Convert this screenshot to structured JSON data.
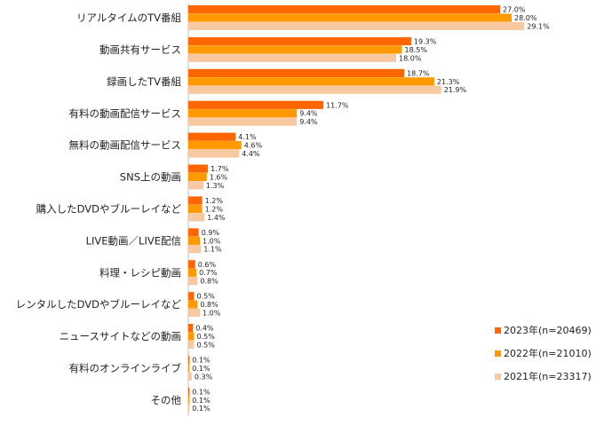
{
  "chart_data": {
    "type": "bar",
    "orientation": "horizontal",
    "unit": "%",
    "categories": [
      "リアルタイムのTV番組",
      "動画共有サービス",
      "録画したTV番組",
      "有料の動画配信サービス",
      "無料の動画配信サービス",
      "SNS上の動画",
      "購入したDVDやブルーレイなど",
      "LIVE動画／LIVE配信",
      "料理・レシピ動画",
      "レンタルしたDVDやブルーレイなど",
      "ニュースサイトなどの動画",
      "有料のオンラインライブ",
      "その他"
    ],
    "series": [
      {
        "name": "2023年(n=20469)",
        "color": "#FF6600",
        "values": [
          27.0,
          19.3,
          18.7,
          11.7,
          4.1,
          1.7,
          1.2,
          0.9,
          0.6,
          0.5,
          0.4,
          0.1,
          0.1
        ],
        "labels": [
          "27.0%",
          "19.3%",
          "18.7%",
          "11.7%",
          "4.1%",
          "1.7%",
          "1.2%",
          "0.9%",
          "0.6%",
          "0.5%",
          "0.4%",
          "0.1%",
          "0.1%"
        ]
      },
      {
        "name": "2022年(n=21010)",
        "color": "#FF9900",
        "values": [
          28.0,
          18.5,
          21.3,
          9.4,
          4.6,
          1.6,
          1.2,
          1.0,
          0.7,
          0.8,
          0.5,
          0.1,
          0.1
        ],
        "labels": [
          "28.0%",
          "18.5%",
          "21.3%",
          "9.4%",
          "4.6%",
          "1.6%",
          "1.2%",
          "1.0%",
          "0.7%",
          "0.8%",
          "0.5%",
          "0.1%",
          "0.1%"
        ]
      },
      {
        "name": "2021年(n=23317)",
        "color": "#F8C8A0",
        "values": [
          29.1,
          18.0,
          21.9,
          9.4,
          4.4,
          1.3,
          1.4,
          1.1,
          0.8,
          1.0,
          0.5,
          0.3,
          0.1
        ],
        "labels": [
          "29.1%",
          "18.0%",
          "21.9%",
          "9.4%",
          "4.4%",
          "1.3%",
          "1.4%",
          "1.1%",
          "0.8%",
          "1.0%",
          "0.5%",
          "0.3%",
          "0.1%"
        ]
      }
    ],
    "legend_position": "bottom-right",
    "grid": false
  }
}
